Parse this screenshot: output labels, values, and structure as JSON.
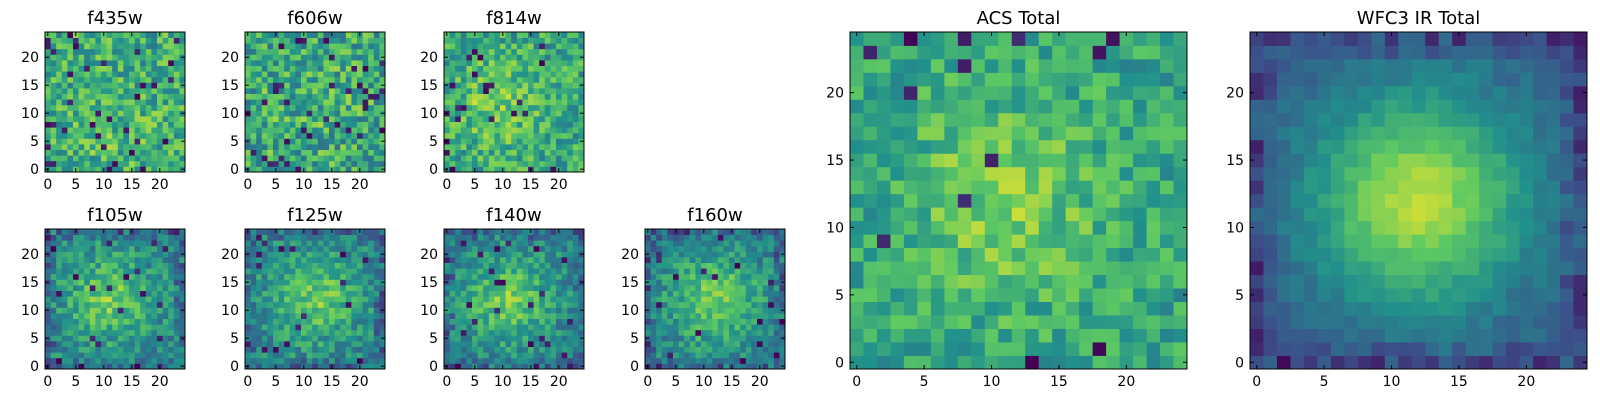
{
  "figure": {
    "background": "#ffffff"
  },
  "colormap": {
    "name": "viridis",
    "stops": [
      "#440154",
      "#3b528b",
      "#21918c",
      "#5ec962",
      "#fde725"
    ]
  },
  "chart_data": [
    {
      "type": "heatmap",
      "title": "f435w",
      "grid_size": 25,
      "xticks": [
        0,
        5,
        10,
        15,
        20
      ],
      "yticks": [
        0,
        5,
        10,
        15,
        20
      ],
      "pattern": "noise",
      "peak": [
        12,
        6
      ],
      "noise": 0.22,
      "blob": 0.05,
      "floor": 0.62,
      "dark_fraction": 0.05,
      "seed": 11
    },
    {
      "type": "heatmap",
      "title": "f606w",
      "grid_size": 25,
      "xticks": [
        0,
        5,
        10,
        15,
        20
      ],
      "yticks": [
        0,
        5,
        10,
        15,
        20
      ],
      "pattern": "noise",
      "peak": [
        12,
        12
      ],
      "noise": 0.24,
      "blob": 0.04,
      "floor": 0.6,
      "dark_fraction": 0.05,
      "seed": 23
    },
    {
      "type": "heatmap",
      "title": "f814w",
      "grid_size": 25,
      "xticks": [
        0,
        5,
        10,
        15,
        20
      ],
      "yticks": [
        0,
        5,
        10,
        15,
        20
      ],
      "pattern": "noise",
      "peak": [
        9,
        12
      ],
      "noise": 0.2,
      "blob": 0.16,
      "floor": 0.6,
      "dark_fraction": 0.04,
      "seed": 37
    },
    {
      "type": "heatmap",
      "title": "f105w",
      "grid_size": 25,
      "xticks": [
        0,
        5,
        10,
        15,
        20
      ],
      "yticks": [
        0,
        5,
        10,
        15,
        20
      ],
      "pattern": "blob",
      "peak": [
        11,
        12
      ],
      "noise": 0.16,
      "blob": 0.3,
      "floor": 0.45,
      "dark_fraction": 0.03,
      "seed": 41
    },
    {
      "type": "heatmap",
      "title": "f125w",
      "grid_size": 25,
      "xticks": [
        0,
        5,
        10,
        15,
        20
      ],
      "yticks": [
        0,
        5,
        10,
        15,
        20
      ],
      "pattern": "blob",
      "peak": [
        12,
        12
      ],
      "noise": 0.16,
      "blob": 0.3,
      "floor": 0.45,
      "dark_fraction": 0.03,
      "seed": 53
    },
    {
      "type": "heatmap",
      "title": "f140w",
      "grid_size": 25,
      "xticks": [
        0,
        5,
        10,
        15,
        20
      ],
      "yticks": [
        0,
        5,
        10,
        15,
        20
      ],
      "pattern": "blob",
      "peak": [
        11,
        12
      ],
      "noise": 0.15,
      "blob": 0.32,
      "floor": 0.44,
      "dark_fraction": 0.03,
      "seed": 67
    },
    {
      "type": "heatmap",
      "title": "f160w",
      "grid_size": 25,
      "xticks": [
        0,
        5,
        10,
        15,
        20
      ],
      "yticks": [
        0,
        5,
        10,
        15,
        20
      ],
      "pattern": "blob",
      "peak": [
        12,
        12
      ],
      "noise": 0.15,
      "blob": 0.33,
      "floor": 0.44,
      "dark_fraction": 0.03,
      "seed": 79
    },
    {
      "type": "heatmap",
      "title": "ACS Total",
      "grid_size": 25,
      "xticks": [
        0,
        5,
        10,
        15,
        20
      ],
      "yticks": [
        0,
        5,
        10,
        15,
        20
      ],
      "pattern": "noise",
      "peak": [
        11,
        12
      ],
      "noise": 0.16,
      "blob": 0.2,
      "floor": 0.58,
      "dark_fraction": 0.03,
      "seed": 97
    },
    {
      "type": "heatmap",
      "title": "WFC3 IR Total",
      "grid_size": 25,
      "xticks": [
        0,
        5,
        10,
        15,
        20
      ],
      "yticks": [
        0,
        5,
        10,
        15,
        20
      ],
      "pattern": "blob",
      "peak": [
        12,
        12
      ],
      "noise": 0.05,
      "blob": 0.58,
      "floor": 0.3,
      "dark_fraction": 0.0,
      "seed": 113
    }
  ]
}
